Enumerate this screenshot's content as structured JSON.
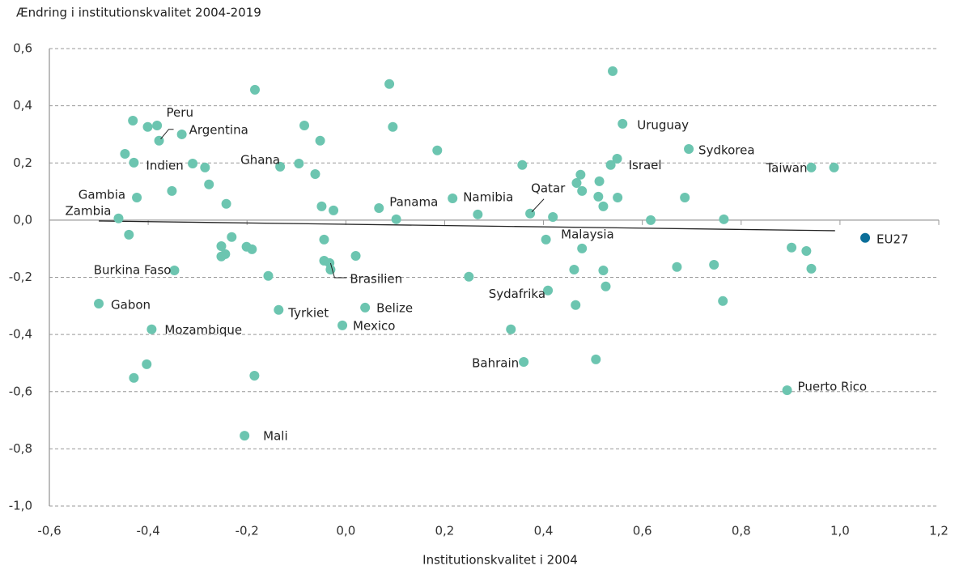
{
  "chart_data": {
    "type": "scatter",
    "title": "Ændring i institutionskvalitet 2004-2019",
    "x_label": "Institutionskvalitet i 2004",
    "xlim": [
      -0.6,
      1.2
    ],
    "ylim": [
      -1.0,
      0.6
    ],
    "xticks": [
      {
        "value": -0.6,
        "label": "-0,6"
      },
      {
        "value": -0.4,
        "label": "-0,4"
      },
      {
        "value": -0.2,
        "label": "-0,2"
      },
      {
        "value": 0,
        "label": "0,0"
      },
      {
        "value": 0.2,
        "label": "0,2"
      },
      {
        "value": 0.4,
        "label": "0,4"
      },
      {
        "value": 0.6,
        "label": "0,6"
      },
      {
        "value": 0.8,
        "label": "0,8"
      },
      {
        "value": 1.0,
        "label": "1,0"
      },
      {
        "value": 1.2,
        "label": "1,2"
      }
    ],
    "yticks": [
      {
        "value": 0.6,
        "label": "0,6"
      },
      {
        "value": 0.4,
        "label": "0,4"
      },
      {
        "value": 0.2,
        "label": "0,2"
      },
      {
        "value": 0,
        "label": "0,0"
      },
      {
        "value": -0.2,
        "label": "-0,2"
      },
      {
        "value": -0.4,
        "label": "-0,4"
      },
      {
        "value": -0.6,
        "label": "-0,6"
      },
      {
        "value": -0.8,
        "label": "-0,8"
      },
      {
        "value": -1.0,
        "label": "-1,0"
      }
    ],
    "grid": true,
    "color": "#6cc5b0",
    "x": [
      -0.431,
      -0.401,
      -0.382,
      -0.378,
      -0.332,
      -0.184,
      0.088,
      0.54,
      -0.084,
      0.095,
      -0.052,
      -0.447,
      -0.429,
      -0.31,
      -0.285,
      -0.133,
      -0.095,
      -0.062,
      -0.277,
      -0.352,
      -0.423,
      -0.242,
      -0.049,
      -0.025,
      0.067,
      0.102,
      0.185,
      0.216,
      0.267,
      0.357,
      0.373,
      0.419,
      0.475,
      0.467,
      0.478,
      0.513,
      0.511,
      0.521,
      0.536,
      0.549,
      0.56,
      0.55,
      0.694,
      0.686,
      0.617,
      0.765,
      0.942,
      0.988,
      -0.46,
      -0.439,
      -0.231,
      -0.252,
      -0.252,
      -0.244,
      -0.201,
      -0.19,
      -0.044,
      -0.044,
      -0.033,
      -0.031,
      0.02,
      -0.157,
      -0.347,
      -0.5,
      -0.393,
      -0.136,
      0.039,
      -0.007,
      -0.403,
      -0.429,
      -0.185,
      -0.205,
      0.249,
      0.405,
      0.478,
      0.462,
      0.521,
      0.526,
      0.409,
      0.465,
      0.334,
      0.36,
      0.506,
      0.67,
      0.745,
      0.763,
      0.902,
      0.932,
      0.942,
      0.893
    ],
    "y": [
      0.348,
      0.326,
      0.331,
      0.278,
      0.3,
      0.456,
      0.476,
      0.521,
      0.331,
      0.326,
      0.278,
      0.232,
      0.201,
      0.198,
      0.184,
      0.187,
      0.198,
      0.161,
      0.125,
      0.102,
      0.079,
      0.057,
      0.048,
      0.034,
      0.042,
      0.003,
      0.244,
      0.076,
      0.02,
      0.193,
      0.023,
      0.011,
      0.159,
      0.13,
      0.102,
      0.136,
      0.082,
      0.048,
      0.193,
      0.215,
      0.337,
      0.079,
      0.249,
      0.079,
      0.0,
      0.003,
      0.184,
      0.184,
      0.006,
      -0.051,
      -0.059,
      -0.091,
      -0.127,
      -0.119,
      -0.093,
      -0.102,
      -0.068,
      -0.142,
      -0.15,
      -0.173,
      -0.125,
      -0.195,
      -0.176,
      -0.292,
      -0.382,
      -0.314,
      -0.306,
      -0.368,
      -0.504,
      -0.552,
      -0.544,
      -0.754,
      -0.198,
      -0.068,
      -0.099,
      -0.173,
      -0.176,
      -0.232,
      -0.246,
      -0.297,
      -0.382,
      -0.496,
      -0.487,
      -0.164,
      -0.156,
      -0.283,
      -0.096,
      -0.108,
      -0.17,
      -0.595
    ],
    "labels": [
      null,
      null,
      null,
      "Peru",
      "Argentina",
      null,
      null,
      null,
      null,
      null,
      null,
      null,
      "Indien",
      null,
      null,
      "Ghana",
      null,
      null,
      null,
      null,
      "Gambia",
      null,
      null,
      null,
      "Panama",
      null,
      null,
      "Namibia",
      null,
      null,
      "Qatar",
      null,
      null,
      null,
      null,
      null,
      null,
      null,
      "Israel",
      null,
      "Uruguay",
      null,
      "Sydkorea",
      null,
      null,
      null,
      "Taiwan",
      null,
      "Zambia",
      null,
      null,
      null,
      null,
      null,
      null,
      null,
      null,
      null,
      null,
      "Brasilien",
      null,
      null,
      "Burkina Faso",
      "Gabon",
      "Mozambique",
      "Tyrkiet",
      "Belize",
      "Mexico",
      null,
      null,
      null,
      "Mali",
      null,
      null,
      "Malaysia",
      null,
      null,
      null,
      "Sydafrika",
      null,
      null,
      "Bahrain",
      null,
      null,
      null,
      null,
      null,
      null,
      null,
      "Puerto Rico"
    ],
    "highlight": {
      "x": 1.051,
      "y": -0.062,
      "label": "EU27",
      "color": "#0b6e99"
    },
    "trendline": {
      "x": [
        -0.5,
        0.99
      ],
      "y": [
        -0.003,
        -0.037
      ]
    }
  }
}
